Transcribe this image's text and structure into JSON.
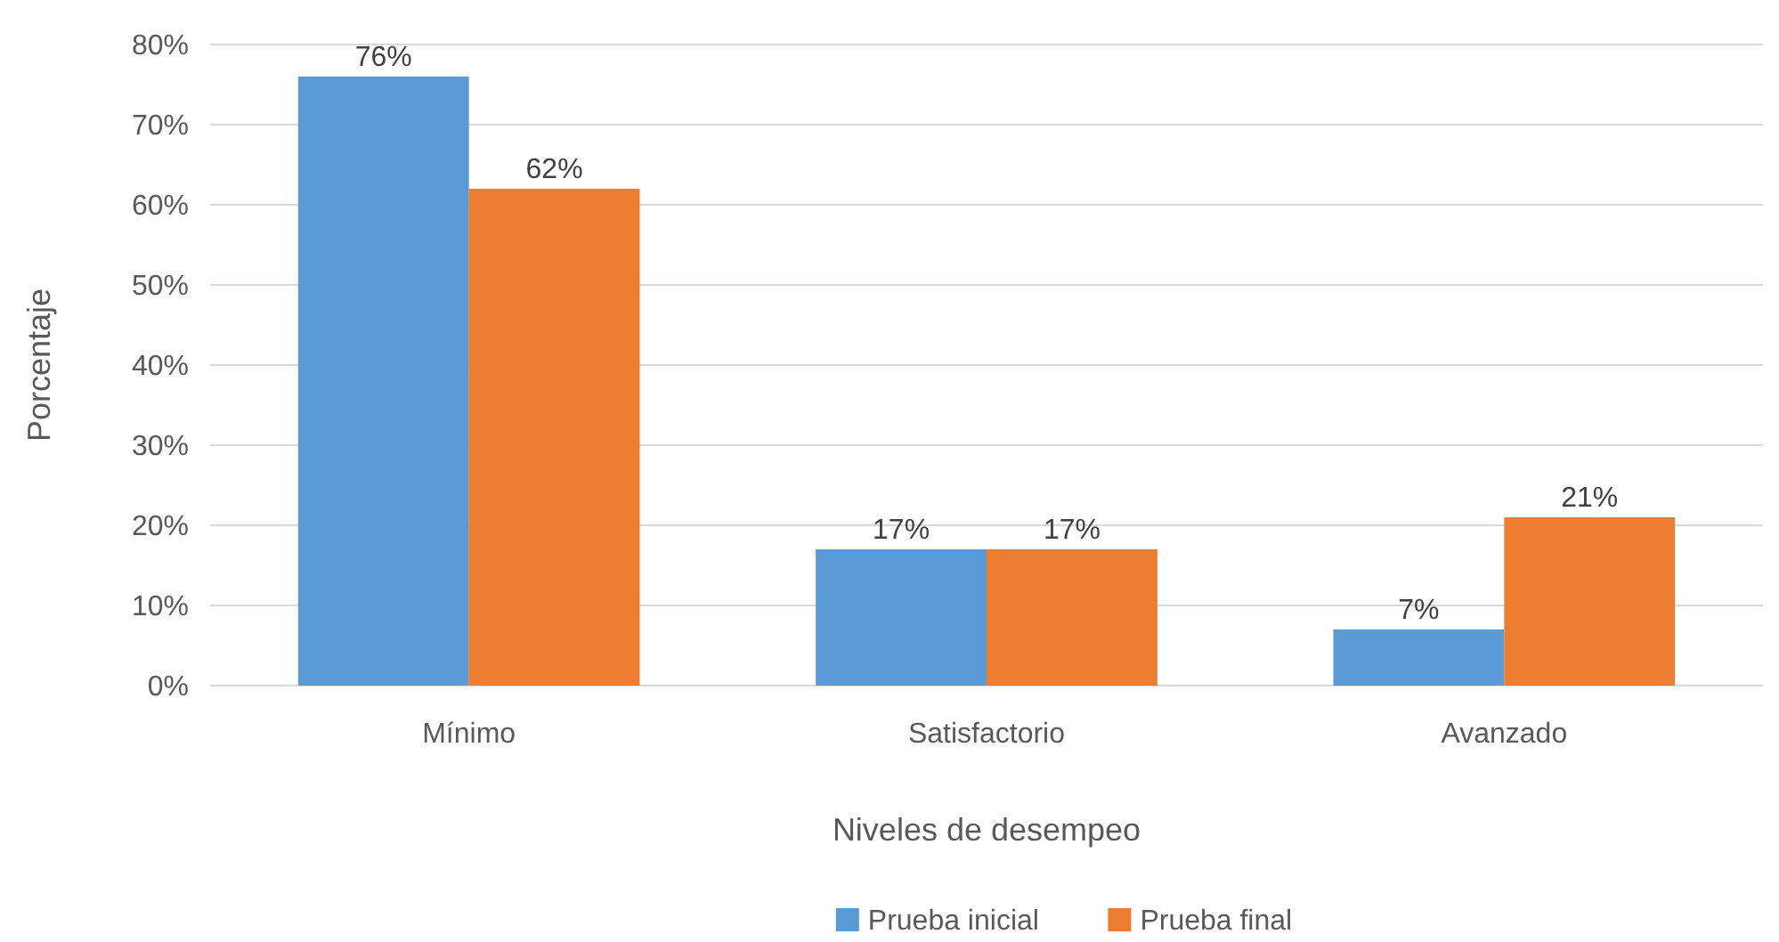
{
  "chart_data": {
    "type": "bar",
    "xlabel": "Niveles de desempeo",
    "ylabel": "Porcentaje",
    "categories": [
      "Mínimo",
      "Satisfactorio",
      "Avanzado"
    ],
    "series": [
      {
        "name": "Prueba inicial",
        "color": "#5b9bd5",
        "values": [
          76,
          17,
          7
        ],
        "value_labels": [
          "76%",
          "17%",
          "7%"
        ]
      },
      {
        "name": "Prueba final",
        "color": "#ed7d31",
        "values": [
          62,
          17,
          21
        ],
        "value_labels": [
          "62%",
          "17%",
          "21%"
        ]
      }
    ],
    "ylim": [
      0,
      80
    ],
    "yticks": [
      {
        "value": 0,
        "label": "0%"
      },
      {
        "value": 10,
        "label": "10%"
      },
      {
        "value": 20,
        "label": "20%"
      },
      {
        "value": 30,
        "label": "30%"
      },
      {
        "value": 40,
        "label": "40%"
      },
      {
        "value": 50,
        "label": "50%"
      },
      {
        "value": 60,
        "label": "60%"
      },
      {
        "value": 70,
        "label": "70%"
      },
      {
        "value": 80,
        "label": "80%"
      }
    ],
    "grid": "y",
    "legend": "bottom"
  }
}
